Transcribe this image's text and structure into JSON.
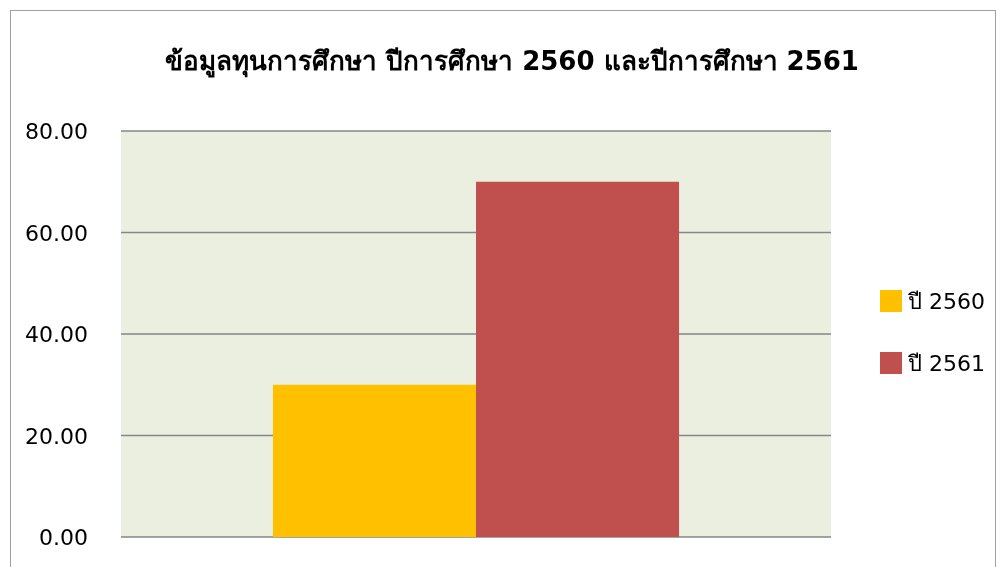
{
  "chart_data": {
    "type": "bar",
    "title": "ข้อมูลทุนการศึกษา ปีการศึกษา 2560 และปีการศึกษา 2561",
    "categories": [
      null
    ],
    "series": [
      {
        "name": "ปี 2560",
        "color": "#ffc000",
        "values": [
          30
        ]
      },
      {
        "name": "ปี 2561",
        "color": "#c0504d",
        "values": [
          70
        ]
      }
    ],
    "ylim": [
      0,
      80
    ],
    "yticks": [
      {
        "value": 0,
        "label": "0.00"
      },
      {
        "value": 20,
        "label": "20.00"
      },
      {
        "value": 40,
        "label": "40.00"
      },
      {
        "value": 60,
        "label": "60.00"
      },
      {
        "value": 80,
        "label": "80.00"
      }
    ],
    "grid": "y",
    "legend": "right"
  }
}
